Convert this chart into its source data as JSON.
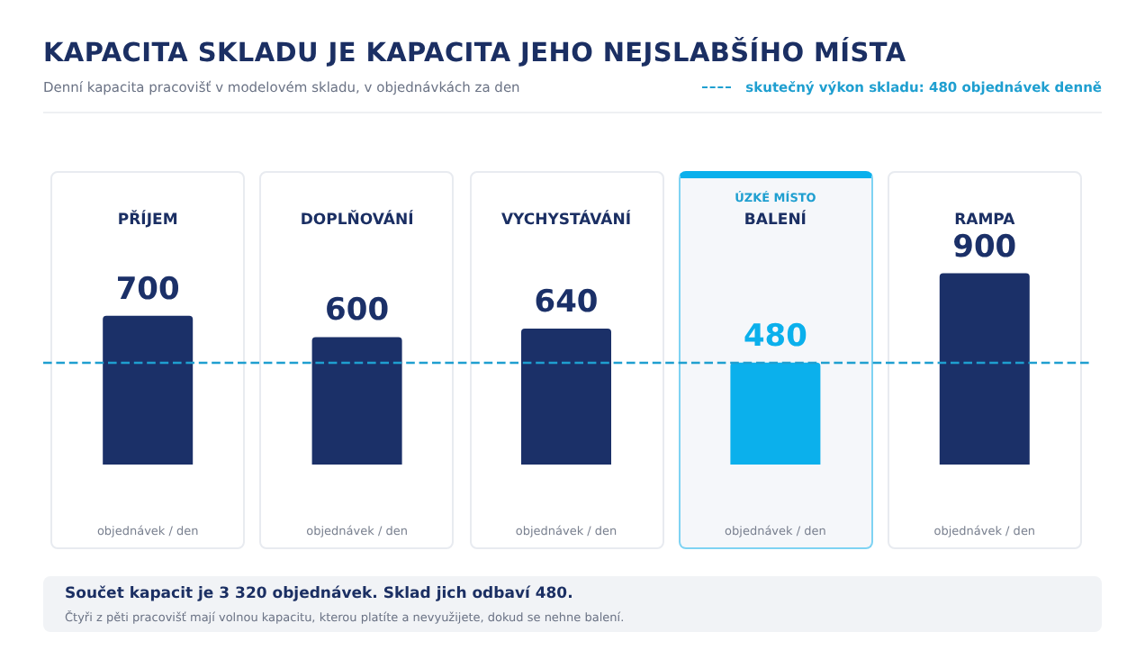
{
  "chart_data": {
    "type": "bar",
    "title": "KAPACITA SKLADU JE KAPACITA JEHO NEJSLABŠÍHO MÍSTA",
    "subtitle": "Denní kapacita pracovišť v modelovém skladu, v objednávkách za den",
    "categories": [
      "PŘÍJEM",
      "DOPLŇOVÁNÍ",
      "VYCHYSTÁVÁNÍ",
      "BALENÍ",
      "RAMPA"
    ],
    "values": [
      700,
      600,
      640,
      480,
      900
    ],
    "colors": [
      "#1b3068",
      "#1b3068",
      "#1b3068",
      "#0bb0ec",
      "#1b3068"
    ],
    "data_labels": true,
    "grid": false,
    "ref_lines": [
      {
        "axis": "y",
        "value": 480,
        "label": "skutečný výkon skladu: 480 objednávek denně",
        "color": "#1f9fd0",
        "line_style": "dashed"
      }
    ],
    "annotations": [
      "ÚZKÉ MÍSTO",
      "objednávek / den",
      "objednávek / den",
      "objednávek / den",
      "objednávek / den",
      "objednávek / den",
      "Součet kapacit je 3 320 objednávek. Sklad jich odbaví 480.",
      "Čtyři z pěti pracovišť mají volnou kapacitu, kterou platíte a nevyužijete, dokud se nehne balení."
    ]
  }
}
